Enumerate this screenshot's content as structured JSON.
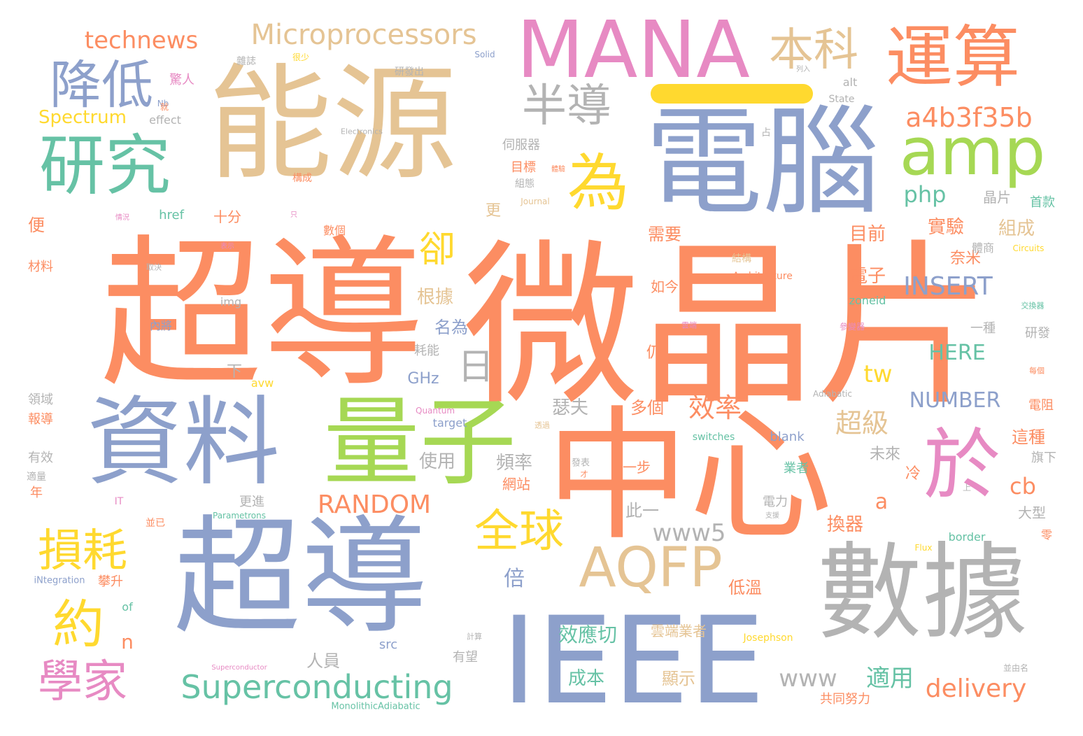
{
  "palette": {
    "orange": "#fc8d62",
    "blue": "#8da0cb",
    "teal": "#66c2a5",
    "pink": "#e78ac3",
    "green": "#a6d854",
    "yellow": "#ffd92f",
    "tan": "#e5c494",
    "gray": "#b3b3b3"
  },
  "highlight_bar_color": "#ffd92f",
  "words": [
    "微晶片",
    "超導",
    "中心",
    "能源",
    "電腦",
    "超導",
    "IEEE",
    "數據",
    "資料",
    "量子",
    "MANA",
    "運算",
    "研究",
    "amp",
    "於",
    "AQFP",
    "降低",
    "半導",
    "為",
    "本科",
    "Microprocessors",
    "technews",
    "a4b3f35b",
    "Superconducting",
    "損耗",
    "全球",
    "約",
    "學家",
    "卻",
    "日",
    "php",
    "INSERT",
    "RANDOM",
    "www5",
    "delivery",
    "www",
    "NUMBER",
    "Spectrum",
    "HERE",
    "cb",
    "效率",
    "超級",
    "適用",
    "tw",
    "GHz",
    "需要",
    "目前",
    "實驗",
    "組成",
    "倍",
    "效應切",
    "成本",
    "電子",
    "換器",
    "雲端業者",
    "名為",
    "根據",
    "使用",
    "頻率",
    "瑟夫",
    "多個",
    "人員",
    "n",
    "a",
    "晶片",
    "伺服器",
    "十分",
    "便",
    "更",
    "冷",
    "奈米",
    "未來",
    "大型",
    "這種",
    "一步",
    "此一",
    "網站",
    "低溫",
    "顯示",
    "共同努力",
    "有望",
    "下",
    "耗能",
    "仍",
    "如今",
    "電阻",
    "一種",
    "研發",
    "首款",
    "旗下",
    "電力",
    "業者",
    "報導",
    "領域",
    "材料",
    "有效",
    "年",
    "適量",
    "攀升",
    "內將",
    "目標",
    "組態",
    "構成",
    "驚人",
    "研發出",
    "雜誌",
    "很少",
    "alt",
    "State",
    "Solid",
    "Electronics",
    "effect",
    "Journal",
    "href",
    "img",
    "zoneid",
    "Architecture",
    "Circuits",
    "avw",
    "target",
    "Quantum",
    "Adiabatic",
    "blank",
    "switches",
    "border",
    "Flux",
    "Parametrons",
    "iNtegration",
    "of",
    "IT",
    "src",
    "Josephson",
    "Superconductor",
    "MonolithicAdiabatic",
    "Nb",
    "交換器",
    "參變器",
    "雲端",
    "占",
    "上",
    "零",
    "發表",
    "並已",
    "支援",
    "並由名",
    "每個",
    "透過",
    "計算",
    "情況",
    "表示",
    "取決",
    "才",
    "列入",
    "數個",
    "只",
    "結構",
    "更進",
    "體商",
    "體驗",
    "就"
  ]
}
